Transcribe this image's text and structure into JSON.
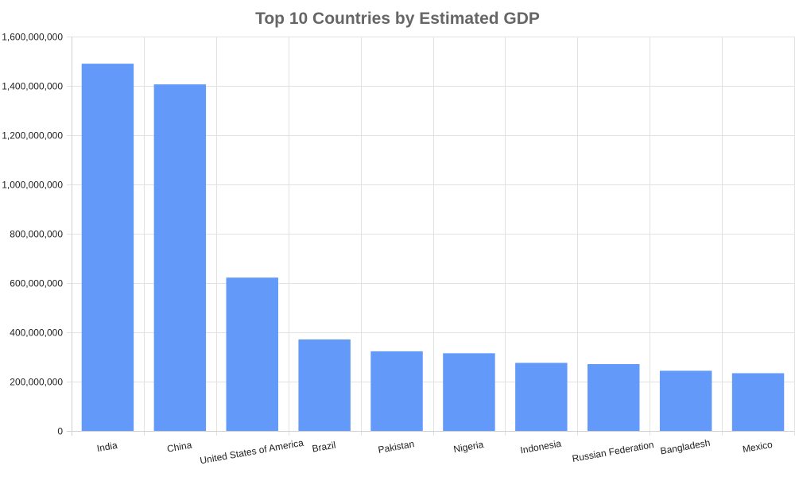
{
  "chart_data": {
    "type": "bar",
    "title": "Top 10 Countries by Estimated GDP",
    "xlabel": "",
    "ylabel": "",
    "categories": [
      "India",
      "China",
      "United States of America",
      "Brazil",
      "Pakistan",
      "Nigeria",
      "Indonesia",
      "Russian Federation",
      "Bangladesh",
      "Mexico"
    ],
    "values": [
      1490000000,
      1406000000,
      622000000,
      371000000,
      323000000,
      315000000,
      276000000,
      271000000,
      244000000,
      234000000
    ],
    "ylim": [
      0,
      1600000000
    ],
    "yticks": [
      0,
      200000000,
      400000000,
      600000000,
      800000000,
      1000000000,
      1200000000,
      1400000000,
      1600000000
    ],
    "ytick_labels": [
      "0",
      "200,000,000",
      "400,000,000",
      "600,000,000",
      "800,000,000",
      "1,000,000,000",
      "1,200,000,000",
      "1,400,000,000",
      "1,600,000,000"
    ],
    "grid": true,
    "legend": "none",
    "bar_color": "#5b95f9"
  }
}
